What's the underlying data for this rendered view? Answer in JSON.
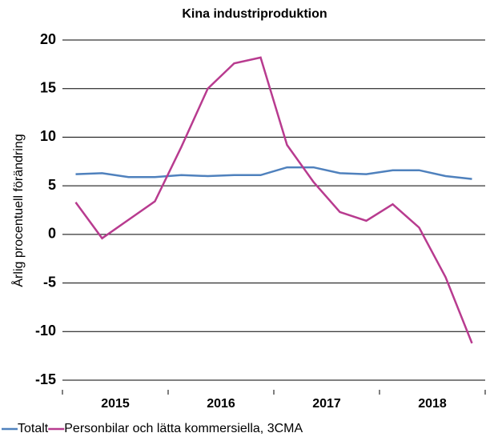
{
  "chart_data": {
    "type": "line",
    "title": "Kina industriproduktion",
    "y_label": "Årlig procentuell förändring",
    "categories": [
      null,
      null,
      null,
      null,
      null,
      null,
      null,
      null,
      null,
      null,
      null,
      null,
      null,
      null,
      null,
      null
    ],
    "groups": [
      "2015",
      "2016",
      "2017",
      "2018"
    ],
    "series": [
      {
        "name": "Totalt",
        "color": "#4f81bd",
        "values": [
          6.2,
          6.3,
          5.9,
          5.9,
          6.1,
          6.0,
          6.1,
          6.1,
          6.9,
          6.9,
          6.3,
          6.2,
          6.6,
          6.6,
          6.0,
          5.7
        ]
      },
      {
        "name": "Personbilar och lätta kommersiella, 3CMA",
        "color": "#b83b8f",
        "values": [
          3.3,
          -0.4,
          1.5,
          3.4,
          9.0,
          15.0,
          17.6,
          18.2,
          9.2,
          5.4,
          2.3,
          1.4,
          3.1,
          0.7,
          -4.4,
          -11.2
        ]
      }
    ],
    "ylim": [
      -15,
      20
    ],
    "yticks": [
      -15,
      -10,
      -5,
      0,
      5,
      10,
      15,
      20
    ],
    "grid": true,
    "legend": "bottom"
  }
}
